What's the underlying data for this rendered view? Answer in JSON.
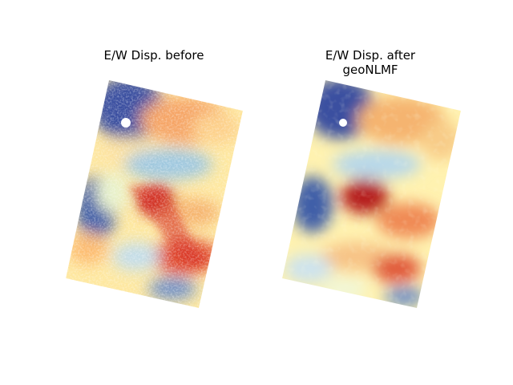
{
  "panels": [
    {
      "title": "E/W Disp. before"
    },
    {
      "title": "E/W Disp. after\ngeoNLMF"
    }
  ],
  "colormap": {
    "name": "RdYlBu_r",
    "stops": [
      "#313695",
      "#4575b4",
      "#74add1",
      "#abd9e9",
      "#e0f3f8",
      "#ffffbf",
      "#fee090",
      "#fdae61",
      "#f46d43",
      "#d73027",
      "#a50026"
    ]
  }
}
